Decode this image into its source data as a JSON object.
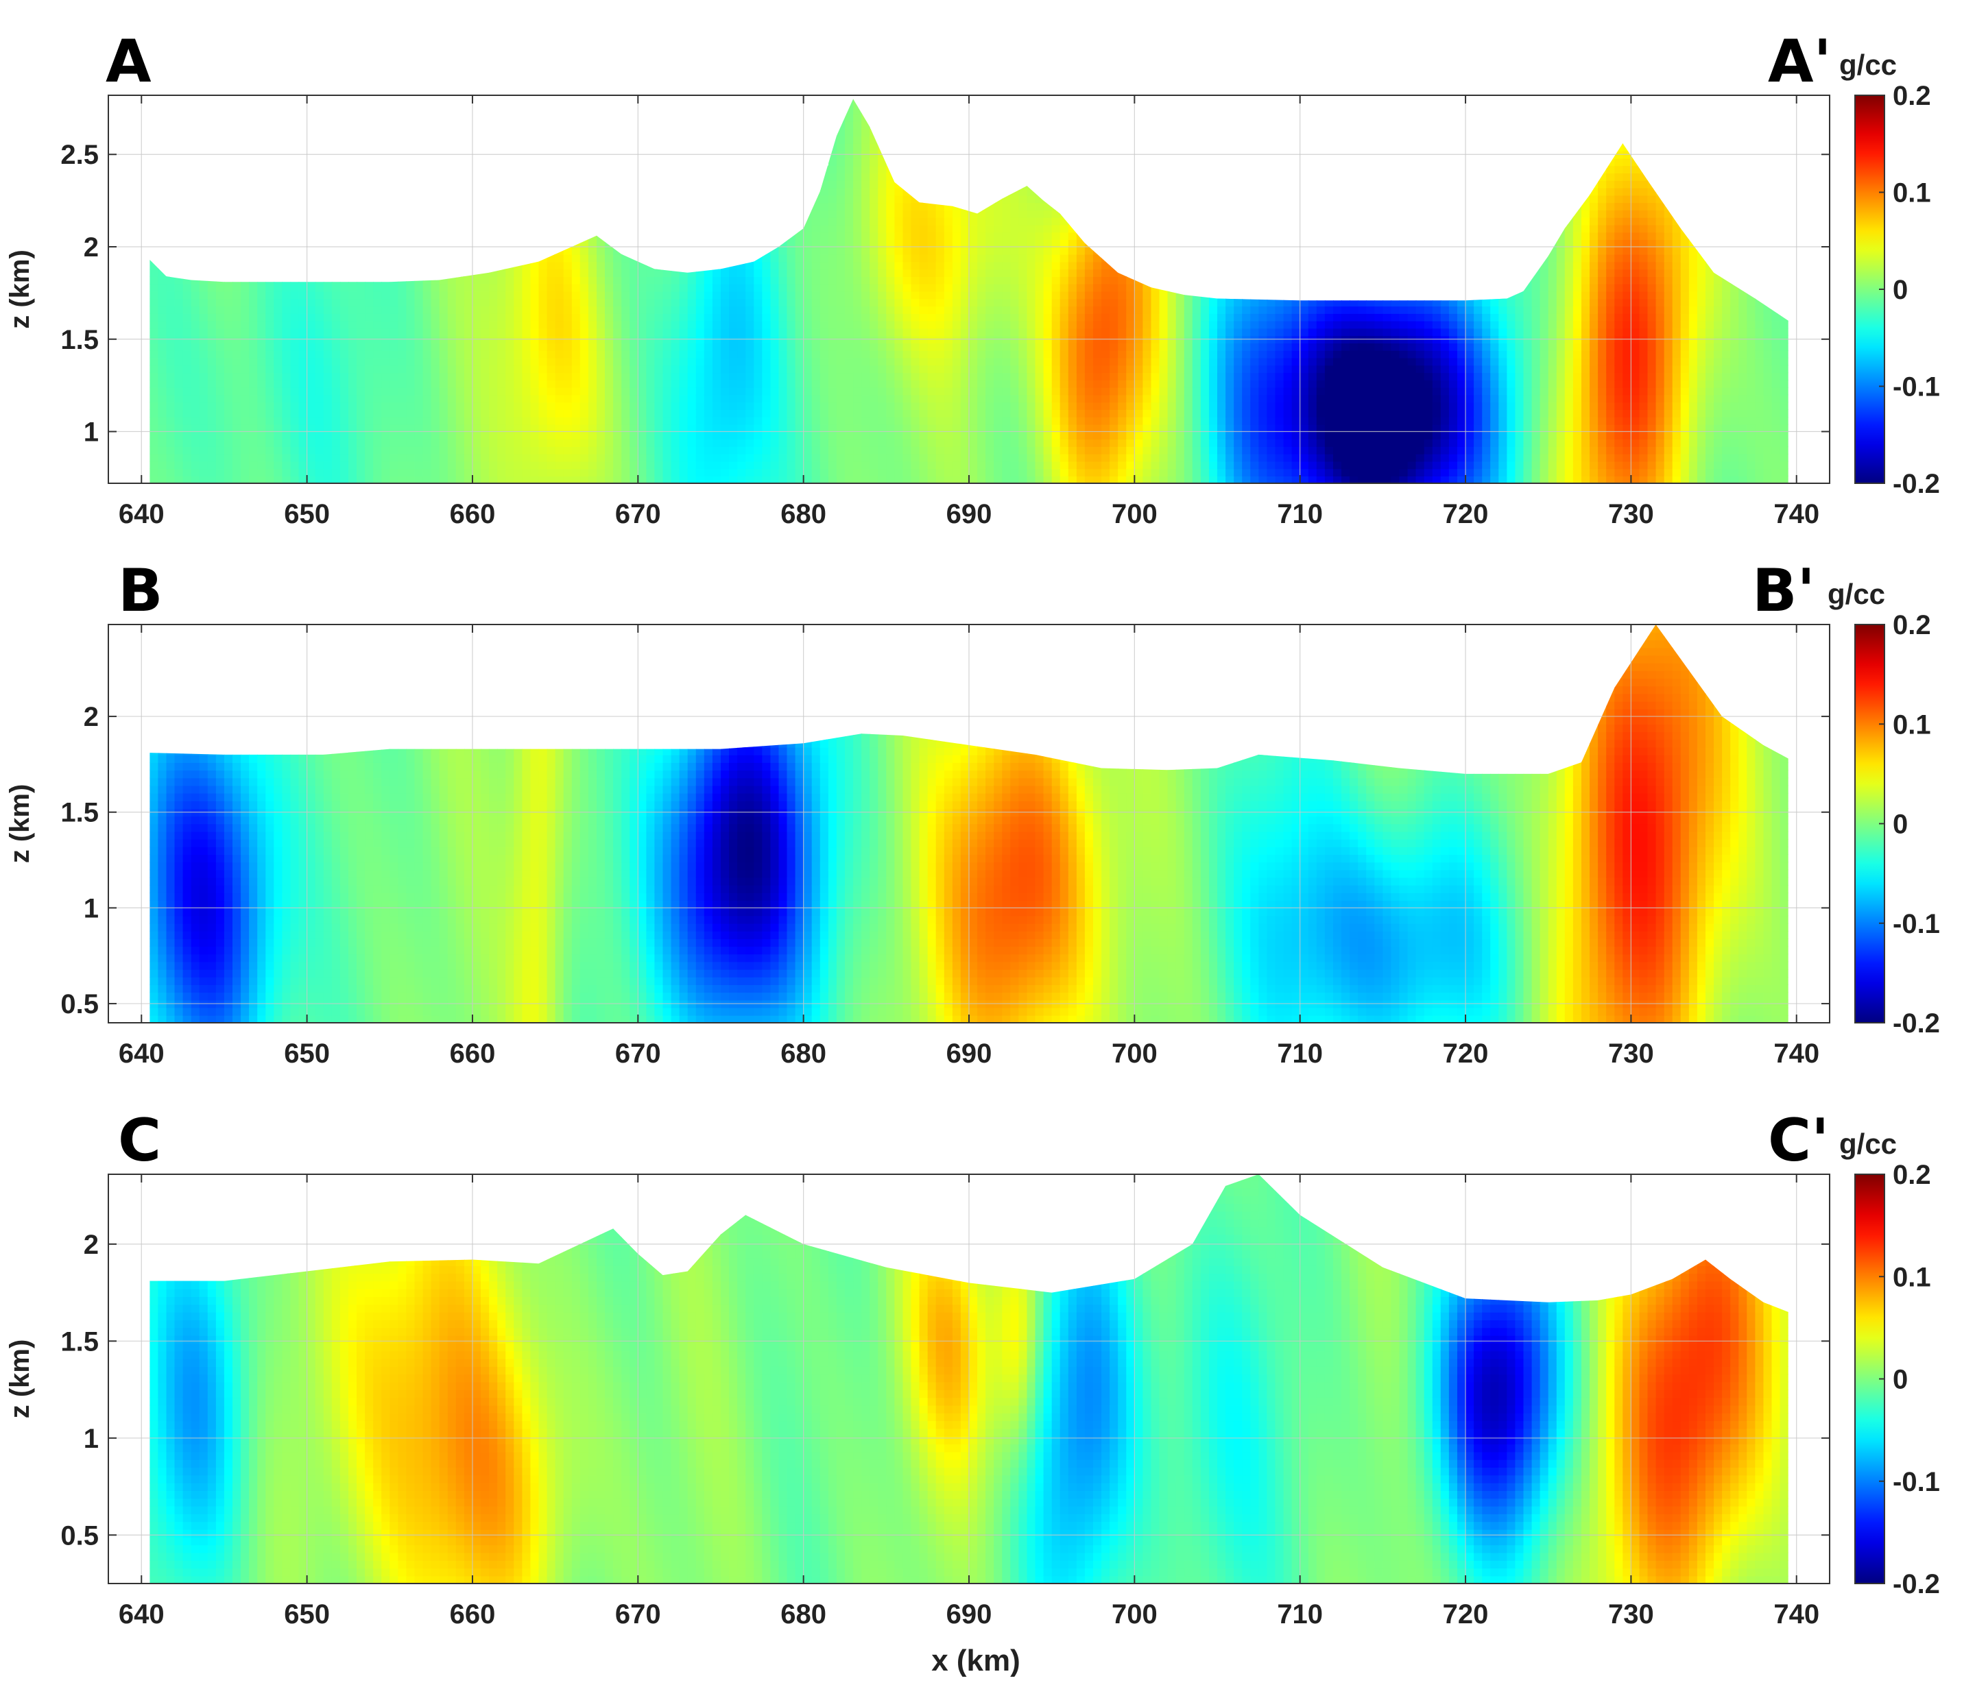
{
  "figure": {
    "xlabel": "x (km)",
    "colormap": "jet"
  },
  "chart_data": [
    {
      "type": "heatmap",
      "panel": "A",
      "label_left": "A",
      "label_right": "A'",
      "colorbar_unit": "g/cc",
      "xlabel": "",
      "ylabel": "z (km)",
      "xlim": [
        638,
        742
      ],
      "ylim": [
        0.72,
        2.82
      ],
      "xticks": [
        640,
        650,
        660,
        670,
        680,
        690,
        700,
        710,
        720,
        730,
        740
      ],
      "yticks": [
        1,
        1.5,
        2,
        2.5
      ],
      "clim": [
        -0.2,
        0.2
      ],
      "cticks": [
        -0.2,
        -0.1,
        0,
        0.1,
        0.2
      ],
      "topography": {
        "x": [
          640.5,
          641.5,
          643,
          645,
          650,
          655,
          658,
          661,
          664,
          666,
          667.5,
          669,
          671,
          673,
          675,
          677,
          678.5,
          680,
          681,
          682,
          683,
          684,
          685.5,
          687,
          689,
          690.5,
          692,
          693.5,
          694.5,
          695.5,
          697,
          699,
          701,
          703,
          705,
          710,
          715,
          720,
          722.5,
          723.5,
          725,
          726,
          727.5,
          729.5,
          731,
          733,
          735,
          737.5,
          739.5
        ],
        "z": [
          1.93,
          1.84,
          1.82,
          1.81,
          1.81,
          1.81,
          1.82,
          1.86,
          1.92,
          2.0,
          2.06,
          1.96,
          1.88,
          1.86,
          1.88,
          1.92,
          2.0,
          2.1,
          2.3,
          2.6,
          2.8,
          2.65,
          2.35,
          2.24,
          2.22,
          2.18,
          2.26,
          2.33,
          2.25,
          2.18,
          2.02,
          1.86,
          1.78,
          1.74,
          1.72,
          1.71,
          1.71,
          1.71,
          1.72,
          1.76,
          1.95,
          2.1,
          2.28,
          2.56,
          2.36,
          2.1,
          1.86,
          1.72,
          1.6
        ]
      },
      "anomalies": [
        {
          "x": 665,
          "z": 1.5,
          "sx": 2.2,
          "sz": 0.8,
          "tilt": -0.06,
          "value": 0.07
        },
        {
          "x": 675,
          "z": 1.3,
          "sx": 2.5,
          "sz": 0.9,
          "tilt": 0.03,
          "value": -0.08
        },
        {
          "x": 698,
          "z": 1.5,
          "sx": 2.4,
          "sz": 0.7,
          "tilt": 0.04,
          "value": 0.12
        },
        {
          "x": 715,
          "z": 1.1,
          "sx": 4.5,
          "sz": 0.55,
          "tilt": 0.0,
          "value": -0.26
        },
        {
          "x": 707,
          "z": 1.3,
          "sx": 2.5,
          "sz": 0.8,
          "tilt": 0.03,
          "value": -0.06
        },
        {
          "x": 730,
          "z": 1.4,
          "sx": 3.0,
          "sz": 0.9,
          "tilt": 0.12,
          "value": 0.12
        },
        {
          "x": 688,
          "z": 2.1,
          "sx": 4.0,
          "sz": 0.5,
          "tilt": 0.0,
          "value": 0.05
        },
        {
          "x": 648,
          "z": 1.3,
          "sx": 5.0,
          "sz": 0.8,
          "tilt": 0.0,
          "value": -0.03
        }
      ]
    },
    {
      "type": "heatmap",
      "panel": "B",
      "label_left": "B",
      "label_right": "B'",
      "colorbar_unit": "g/cc",
      "xlabel": "",
      "ylabel": "z (km)",
      "xlim": [
        638,
        742
      ],
      "ylim": [
        0.4,
        2.48
      ],
      "xticks": [
        640,
        650,
        660,
        670,
        680,
        690,
        700,
        710,
        720,
        730,
        740
      ],
      "yticks": [
        0.5,
        1,
        1.5,
        2
      ],
      "clim": [
        -0.2,
        0.2
      ],
      "cticks": [
        -0.2,
        -0.1,
        0,
        0.1,
        0.2
      ],
      "topography": {
        "x": [
          640.5,
          645,
          651,
          655,
          660,
          665,
          670,
          675,
          680,
          683.5,
          686,
          690,
          694,
          698,
          702,
          705,
          707.5,
          712,
          716,
          720,
          723,
          725,
          727,
          729,
          731.5,
          733,
          735.5,
          738,
          739.5
        ],
        "z": [
          1.81,
          1.8,
          1.8,
          1.83,
          1.83,
          1.83,
          1.83,
          1.83,
          1.86,
          1.91,
          1.9,
          1.85,
          1.8,
          1.73,
          1.72,
          1.73,
          1.8,
          1.77,
          1.73,
          1.7,
          1.7,
          1.7,
          1.76,
          2.15,
          2.48,
          2.3,
          2.0,
          1.85,
          1.78
        ]
      },
      "anomalies": [
        {
          "x": 644,
          "z": 1.05,
          "sx": 3.0,
          "sz": 0.75,
          "tilt": -0.02,
          "value": -0.16
        },
        {
          "x": 676,
          "z": 1.25,
          "sx": 3.4,
          "sz": 0.7,
          "tilt": 0.03,
          "value": -0.2
        },
        {
          "x": 693,
          "z": 1.1,
          "sx": 3.4,
          "sz": 0.75,
          "tilt": 0.02,
          "value": 0.13
        },
        {
          "x": 716,
          "z": 0.8,
          "sx": 5.0,
          "sz": 0.5,
          "tilt": 0.0,
          "value": -0.09
        },
        {
          "x": 731,
          "z": 1.4,
          "sx": 4.0,
          "sz": 1.2,
          "tilt": 0.1,
          "value": 0.13
        },
        {
          "x": 664,
          "z": 1.2,
          "sx": 1.2,
          "sz": 1.5,
          "tilt": 0.0,
          "value": 0.05
        },
        {
          "x": 709,
          "z": 1.2,
          "sx": 3.0,
          "sz": 0.8,
          "tilt": 0.0,
          "value": -0.03
        }
      ]
    },
    {
      "type": "heatmap",
      "panel": "C",
      "label_left": "C",
      "label_right": "C'",
      "colorbar_unit": "g/cc",
      "xlabel": "x (km)",
      "ylabel": "z (km)",
      "xlim": [
        638,
        742
      ],
      "ylim": [
        0.25,
        2.36
      ],
      "xticks": [
        640,
        650,
        660,
        670,
        680,
        690,
        700,
        710,
        720,
        730,
        740
      ],
      "yticks": [
        0.5,
        1,
        1.5,
        2
      ],
      "clim": [
        -0.2,
        0.2
      ],
      "cticks": [
        -0.2,
        -0.1,
        0,
        0.1,
        0.2
      ],
      "topography": {
        "x": [
          640.5,
          645,
          650,
          655,
          660,
          664,
          666.5,
          668.5,
          670,
          671.5,
          673,
          675,
          676.5,
          680,
          685,
          690,
          693,
          695,
          700,
          703.5,
          705.5,
          707.5,
          710,
          715,
          720,
          725,
          728,
          730,
          732.5,
          734.5,
          736,
          738,
          739.5
        ],
        "z": [
          1.81,
          1.81,
          1.86,
          1.91,
          1.92,
          1.9,
          2.0,
          2.08,
          1.95,
          1.84,
          1.86,
          2.05,
          2.15,
          2.0,
          1.88,
          1.8,
          1.77,
          1.75,
          1.82,
          2.0,
          2.3,
          2.36,
          2.15,
          1.88,
          1.72,
          1.7,
          1.71,
          1.74,
          1.82,
          1.92,
          1.82,
          1.7,
          1.65
        ]
      },
      "anomalies": [
        {
          "x": 643.5,
          "z": 1.2,
          "sx": 2.4,
          "sz": 0.75,
          "tilt": 0.02,
          "value": -0.09
        },
        {
          "x": 656,
          "z": 1.3,
          "sx": 4.5,
          "sz": 0.9,
          "tilt": -0.05,
          "value": 0.07
        },
        {
          "x": 662,
          "z": 0.7,
          "sx": 3.5,
          "sz": 0.6,
          "tilt": 0.0,
          "value": 0.05
        },
        {
          "x": 689,
          "z": 1.5,
          "sx": 2.0,
          "sz": 0.5,
          "tilt": -0.05,
          "value": 0.07
        },
        {
          "x": 693,
          "z": 1.5,
          "sx": 1.0,
          "sz": 0.45,
          "tilt": 0.0,
          "value": 0.06
        },
        {
          "x": 697,
          "z": 1.1,
          "sx": 2.4,
          "sz": 0.8,
          "tilt": 0.05,
          "value": -0.09
        },
        {
          "x": 722,
          "z": 1.25,
          "sx": 2.7,
          "sz": 0.55,
          "tilt": 0.02,
          "value": -0.17
        },
        {
          "x": 734,
          "z": 1.3,
          "sx": 3.5,
          "sz": 0.9,
          "tilt": 0.12,
          "value": 0.14
        },
        {
          "x": 705,
          "z": 1.0,
          "sx": 3.0,
          "sz": 0.8,
          "tilt": 0.0,
          "value": -0.04
        }
      ]
    }
  ]
}
